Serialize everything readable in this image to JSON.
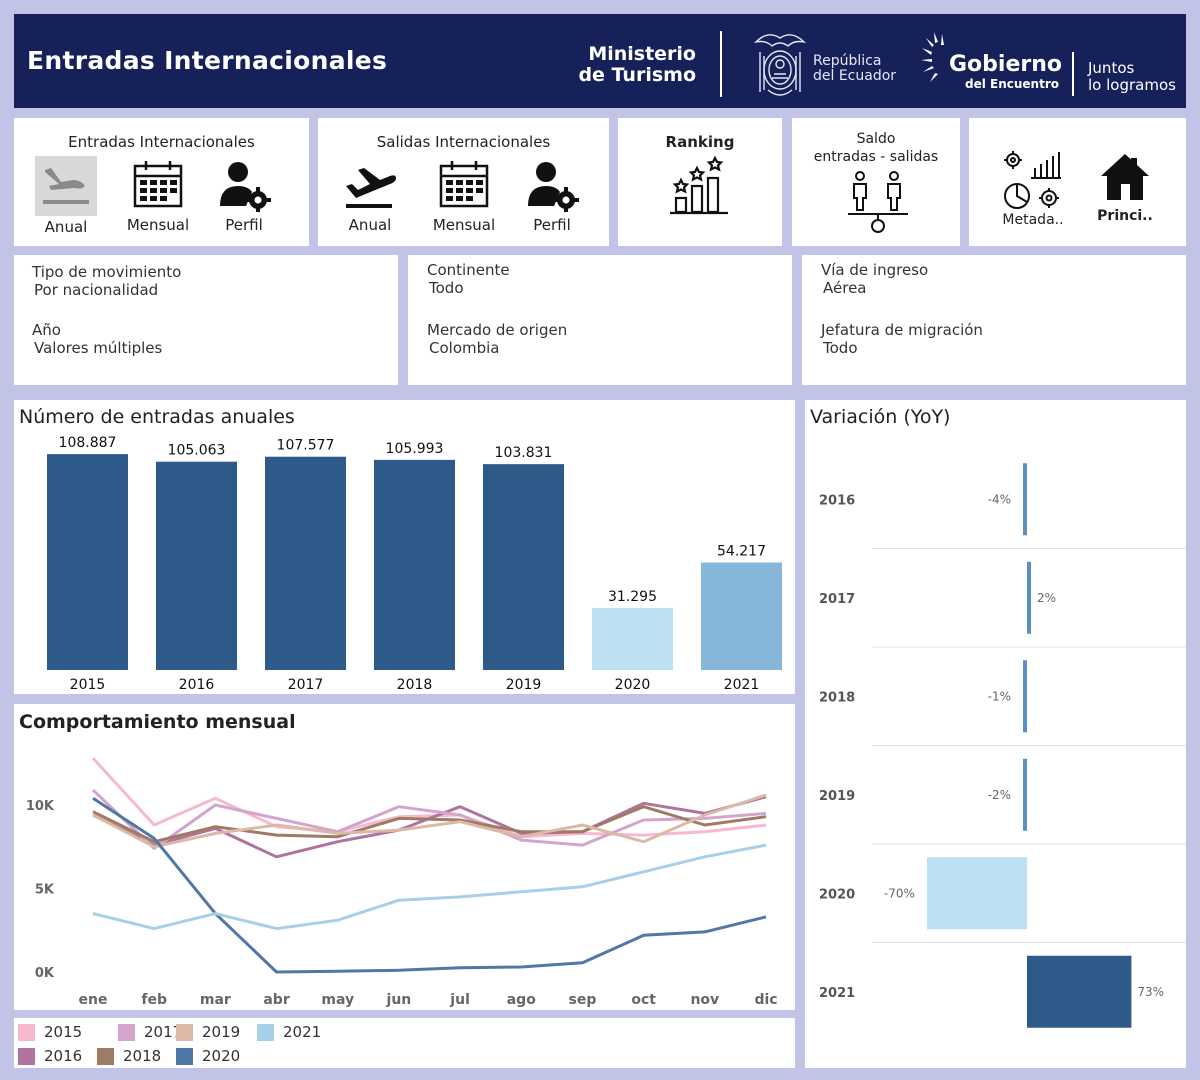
{
  "header": {
    "title": "Entradas Internacionales",
    "ministry": [
      "Ministerio",
      "de Turismo"
    ],
    "republic": [
      "República",
      "del Ecuador"
    ],
    "gobierno": "Gobierno",
    "gobierno_sub": "del Encuentro",
    "slogan": [
      "Juntos",
      "lo logramos"
    ]
  },
  "nav": {
    "entradas": {
      "title": "Entradas Internacionales",
      "items": [
        {
          "label": "Anual",
          "icon": "airplane-landing-icon"
        },
        {
          "label": "Mensual",
          "icon": "calendar-icon"
        },
        {
          "label": "Perfil",
          "icon": "user-gear-icon"
        }
      ]
    },
    "salidas": {
      "title": "Salidas Internacionales",
      "items": [
        {
          "label": "Anual",
          "icon": "airplane-takeoff-icon"
        },
        {
          "label": "Mensual",
          "icon": "calendar-icon"
        },
        {
          "label": "Perfil",
          "icon": "user-gear-icon"
        }
      ]
    },
    "ranking": {
      "title": "Ranking",
      "icon": "ranking-icon"
    },
    "saldo": {
      "title": [
        "Saldo",
        "entradas - salidas"
      ],
      "icon": "balance-people-icon"
    },
    "metadata": {
      "label": "Metada..",
      "icon": "metadata-icon"
    },
    "principal": {
      "label": "Princi..",
      "icon": "home-icon"
    }
  },
  "filters": [
    {
      "label": "Tipo de movimiento",
      "value": "Por nacionalidad"
    },
    {
      "label": "Año",
      "value": "Valores múltiples"
    },
    {
      "label": "Continente",
      "value": "Todo"
    },
    {
      "label": "Mercado de origen",
      "value": "Colombia"
    },
    {
      "label": "Vía de ingreso",
      "value": "Aérea"
    },
    {
      "label": "Jefatura de migración",
      "value": "Todo"
    }
  ],
  "colors": {
    "header_bg": "#16215a",
    "bar_dark": "#2e5a8a",
    "bar_light": "#bde0f2",
    "bar_mid": "#86b6da"
  },
  "chart_data": [
    {
      "type": "bar",
      "title": "Número de entradas anuales",
      "categories": [
        "2015",
        "2016",
        "2017",
        "2018",
        "2019",
        "2020",
        "2021"
      ],
      "values": [
        108887,
        105063,
        107577,
        105993,
        103831,
        31295,
        54217
      ],
      "value_labels": [
        "108.887",
        "105.063",
        "107.577",
        "105.993",
        "103.831",
        "31.295",
        "54.217"
      ],
      "colors": [
        "#2e5a8a",
        "#2e5a8a",
        "#2e5a8a",
        "#2e5a8a",
        "#2e5a8a",
        "#bde0f2",
        "#86b6da"
      ],
      "ylim": [
        0,
        115000
      ]
    },
    {
      "type": "bar",
      "title": "Variación (YoY)",
      "orientation": "horizontal",
      "categories": [
        "2016",
        "2017",
        "2018",
        "2019",
        "2020",
        "2021"
      ],
      "values": [
        -4,
        2,
        -1,
        -2,
        -70,
        73
      ],
      "value_labels": [
        "-4%",
        "2%",
        "-1%",
        "-2%",
        "-70%",
        "73%"
      ],
      "colors": [
        "#5b8fc2",
        "#5b8fc2",
        "#5b8fc2",
        "#5b8fc2",
        "#bde0f2",
        "#2e5a8a"
      ],
      "xlim": [
        -100,
        100
      ]
    },
    {
      "type": "line",
      "title": "Comportamiento mensual",
      "x": [
        "ene",
        "feb",
        "mar",
        "abr",
        "may",
        "jun",
        "jul",
        "ago",
        "sep",
        "oct",
        "nov",
        "dic"
      ],
      "yticks": [
        {
          "value": 0,
          "label": "0K"
        },
        {
          "value": 5000,
          "label": "5K"
        },
        {
          "value": 10000,
          "label": "10K"
        }
      ],
      "ylim": [
        0,
        13000
      ],
      "series": [
        {
          "name": "2015",
          "color": "#f7b9cf",
          "values": [
            12800,
            8800,
            10400,
            8700,
            8400,
            9300,
            9400,
            8100,
            8300,
            8200,
            8400,
            8800
          ]
        },
        {
          "name": "2016",
          "color": "#b0729f",
          "values": [
            9400,
            7600,
            8600,
            6900,
            7800,
            8500,
            9900,
            8300,
            8400,
            10100,
            9500,
            10500
          ]
        },
        {
          "name": "2017",
          "color": "#d4a5cc",
          "values": [
            10900,
            7400,
            10000,
            9200,
            8400,
            9900,
            9400,
            7900,
            7600,
            9100,
            9200,
            9500
          ]
        },
        {
          "name": "2018",
          "color": "#a07b63",
          "values": [
            9600,
            7800,
            8700,
            8200,
            8100,
            9200,
            9100,
            8400,
            8400,
            9900,
            8800,
            9300
          ]
        },
        {
          "name": "2019",
          "color": "#dcb8a6",
          "values": [
            9400,
            7500,
            8300,
            8800,
            8300,
            8500,
            9000,
            8100,
            8800,
            7800,
            9400,
            10600
          ]
        },
        {
          "name": "2020",
          "color": "#4f77a8",
          "values": [
            10400,
            8000,
            3500,
            0,
            50,
            100,
            250,
            300,
            550,
            2200,
            2400,
            3300
          ]
        },
        {
          "name": "2021",
          "color": "#a8cfe8",
          "values": [
            3500,
            2600,
            3500,
            2600,
            3100,
            4300,
            4500,
            4800,
            5100,
            6000,
            6900,
            7600
          ]
        }
      ]
    }
  ]
}
